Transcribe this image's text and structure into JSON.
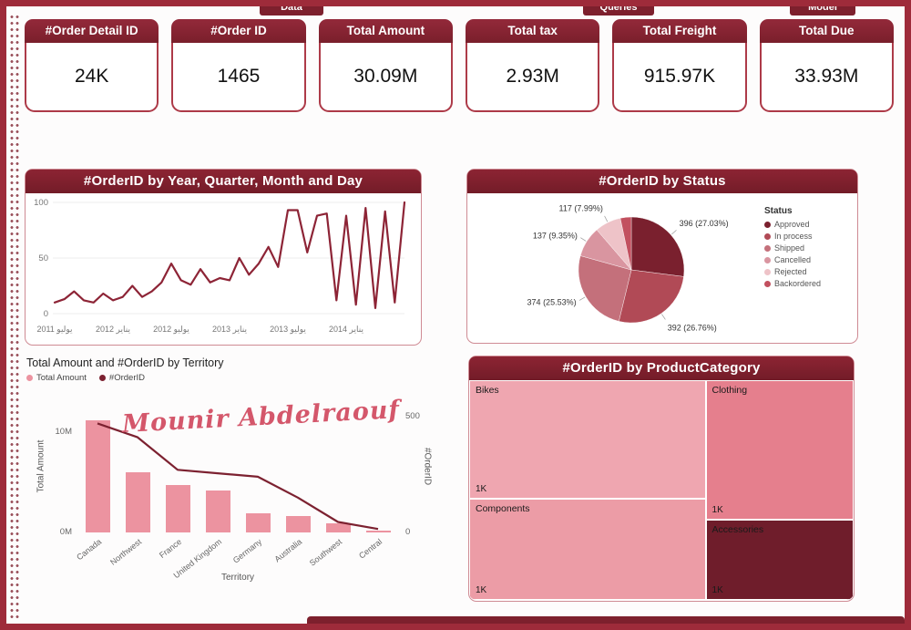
{
  "frame": {
    "top_tabs": [
      "Data",
      "Queries",
      "Model"
    ],
    "accent_color": "#8c2433"
  },
  "kpis": [
    {
      "label": "#Order Detail ID",
      "value": "24K"
    },
    {
      "label": "#Order ID",
      "value": "1465"
    },
    {
      "label": "Total Amount",
      "value": "30.09M"
    },
    {
      "label": "Total tax",
      "value": "2.93M"
    },
    {
      "label": "Total Freight",
      "value": "915.97K"
    },
    {
      "label": "Total Due",
      "value": "33.93M"
    }
  ],
  "chart_data": [
    {
      "id": "orderid-by-date",
      "type": "line",
      "title": "#OrderID by Year, Quarter, Month and Day",
      "ylabel": "",
      "ylim": [
        0,
        100
      ],
      "y_ticks": [
        0,
        50,
        100
      ],
      "x_tick_labels": [
        "يوليو 2011",
        "يناير 2012",
        "يوليو 2012",
        "يناير 2013",
        "يوليو 2013",
        "يناير 2014"
      ],
      "x_tick_indices": [
        0,
        6,
        12,
        18,
        24,
        30
      ],
      "values": [
        10,
        13,
        20,
        12,
        10,
        18,
        12,
        15,
        25,
        15,
        20,
        28,
        45,
        30,
        26,
        40,
        28,
        32,
        30,
        50,
        35,
        45,
        60,
        42,
        93,
        93,
        55,
        88,
        90,
        12,
        88,
        8,
        95,
        5,
        92,
        10,
        100
      ],
      "line_color": "#8d2436",
      "grid": true
    },
    {
      "id": "orderid-by-status",
      "type": "pie",
      "title": "#OrderID by Status",
      "legend_title": "Status",
      "legend_position": "right",
      "slices": [
        {
          "label": "Approved",
          "value": 396,
          "pct": "27.03%",
          "callout": "396 (27.03%)",
          "color": "#7a202e"
        },
        {
          "label": "In process",
          "value": 392,
          "pct": "26.76%",
          "callout": "392 (26.76%)",
          "color": "#b14a56"
        },
        {
          "label": "Shipped",
          "value": 374,
          "pct": "25.53%",
          "callout": "374 (25.53%)",
          "color": "#c4707b"
        },
        {
          "label": "Cancelled",
          "value": 137,
          "pct": "9.35%",
          "callout": "137 (9.35%)",
          "color": "#d995a0"
        },
        {
          "label": "Rejected",
          "value": 117,
          "pct": "7.99%",
          "callout": "117 (7.99%)",
          "color": "#eec3c8"
        },
        {
          "label": "Backordered",
          "value": 49,
          "pct": "",
          "callout": "",
          "color": "#c2505f"
        }
      ]
    },
    {
      "id": "amount-and-orderid-by-territory",
      "type": "combo",
      "title": "Total Amount and #OrderID by Territory",
      "xlabel": "Territory",
      "watermark": "Mounir Abdelraouf",
      "categories": [
        "Canada",
        "Northwest",
        "France",
        "United Kingdom",
        "Germany",
        "Australia",
        "Southwest",
        "Central"
      ],
      "series": [
        {
          "name": "Total Amount",
          "type": "bar",
          "color": "#ec93a0",
          "values_millions": [
            11.2,
            6.0,
            4.7,
            4.2,
            1.9,
            1.6,
            0.9,
            0.15
          ]
        },
        {
          "name": "#OrderID",
          "type": "line",
          "color": "#7c2130",
          "values": [
            470,
            410,
            270,
            255,
            240,
            150,
            45,
            15
          ]
        }
      ],
      "left_axis": {
        "label": "Total Amount",
        "max": 12.7,
        "ticks": [
          {
            "v": 0,
            "t": "0M"
          },
          {
            "v": 10,
            "t": "10M"
          }
        ]
      },
      "right_axis": {
        "label": "#OrderID",
        "max": 550,
        "ticks": [
          {
            "v": 0,
            "t": "0"
          },
          {
            "v": 500,
            "t": "500"
          }
        ]
      }
    },
    {
      "id": "orderid-by-productcategory",
      "type": "treemap",
      "title": "#OrderID by ProductCategory",
      "cells": [
        {
          "label": "Bikes",
          "value": "1K",
          "color": "#efa6b0"
        },
        {
          "label": "Clothing",
          "value": "1K",
          "color": "#e57f8d"
        },
        {
          "label": "Components",
          "value": "1K",
          "color": "#ec9ca6"
        },
        {
          "label": "Accessories",
          "value": "1K",
          "color": "#6f1d2b"
        }
      ]
    }
  ]
}
